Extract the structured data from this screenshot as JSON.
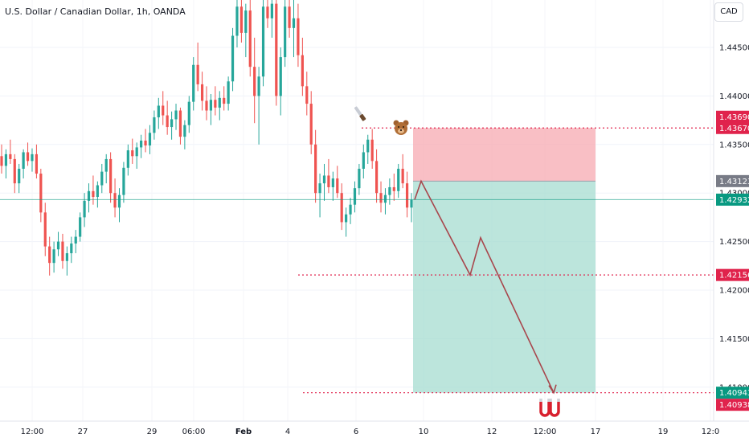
{
  "title": "U.S. Dollar / Canadian Dollar, 1h, OANDA",
  "currency_button": "CAD",
  "colors": {
    "up": "#26a69a",
    "down": "#ef5350",
    "stop_zone": "#f7a9b2",
    "target_zone": "#a6dcd0",
    "red_line": "#e0234c",
    "path": "#a8464c",
    "current_price": "#089981",
    "entry_tag": "#787b86"
  },
  "chart_data": {
    "type": "candlestick",
    "title": "U.S. Dollar / Canadian Dollar, 1h, OANDA",
    "y_axis": {
      "ticks": [
        "1.44500",
        "1.44000",
        "1.43500",
        "1.43000",
        "1.42500",
        "1.42000",
        "1.41500",
        "1.41000"
      ],
      "range": [
        1.4049,
        1.4507
      ]
    },
    "x_axis": {
      "ticks": [
        "12:00",
        "27",
        "29",
        "06:00",
        "Feb",
        "4",
        "6",
        "10",
        "12",
        "12:00",
        "17",
        "19",
        "12:0"
      ]
    },
    "price_labels": {
      "stop_upper": "1.43690",
      "stop": "1.43670",
      "entry": "1.43123",
      "current": "1.42932",
      "mid_target": "1.42156",
      "target": "1.40943",
      "target_lower": "1.40938"
    },
    "levels": {
      "stop": 1.4367,
      "entry": 1.43123,
      "current": 1.42932,
      "mid_target": 1.42156,
      "target": 1.40943
    },
    "projected_path": [
      1.42932,
      1.43123,
      1.42156,
      1.4254,
      1.40943
    ],
    "ohlc_approx": [
      [
        1.4338,
        1.435,
        1.432,
        1.4328
      ],
      [
        1.4328,
        1.4345,
        1.4315,
        1.434
      ],
      [
        1.434,
        1.4355,
        1.433,
        1.4335
      ],
      [
        1.4335,
        1.434,
        1.43,
        1.431
      ],
      [
        1.431,
        1.433,
        1.43,
        1.4325
      ],
      [
        1.4325,
        1.4345,
        1.4315,
        1.4342
      ],
      [
        1.4342,
        1.4352,
        1.4328,
        1.4333
      ],
      [
        1.4333,
        1.4346,
        1.4322,
        1.434
      ],
      [
        1.434,
        1.435,
        1.4315,
        1.432
      ],
      [
        1.432,
        1.4325,
        1.427,
        1.428
      ],
      [
        1.428,
        1.429,
        1.4235,
        1.4245
      ],
      [
        1.4245,
        1.4255,
        1.4215,
        1.4228
      ],
      [
        1.4228,
        1.425,
        1.4218,
        1.4242
      ],
      [
        1.4242,
        1.426,
        1.4235,
        1.425
      ],
      [
        1.425,
        1.4258,
        1.4222,
        1.423
      ],
      [
        1.423,
        1.4245,
        1.4215,
        1.4238
      ],
      [
        1.4238,
        1.4255,
        1.4228,
        1.4248
      ],
      [
        1.4248,
        1.4262,
        1.4238,
        1.4255
      ],
      [
        1.4255,
        1.428,
        1.425,
        1.4275
      ],
      [
        1.4275,
        1.43,
        1.4265,
        1.4292
      ],
      [
        1.4292,
        1.431,
        1.428,
        1.4302
      ],
      [
        1.4302,
        1.4318,
        1.4288,
        1.4296
      ],
      [
        1.4296,
        1.4312,
        1.4285,
        1.4308
      ],
      [
        1.4308,
        1.433,
        1.43,
        1.4322
      ],
      [
        1.4322,
        1.434,
        1.431,
        1.4335
      ],
      [
        1.4335,
        1.4342,
        1.429,
        1.43
      ],
      [
        1.43,
        1.4315,
        1.4275,
        1.4285
      ],
      [
        1.4285,
        1.4305,
        1.427,
        1.4298
      ],
      [
        1.4298,
        1.4332,
        1.429,
        1.4326
      ],
      [
        1.4326,
        1.435,
        1.4318,
        1.4344
      ],
      [
        1.4344,
        1.4356,
        1.433,
        1.4338
      ],
      [
        1.4338,
        1.4352,
        1.4325,
        1.4347
      ],
      [
        1.4347,
        1.436,
        1.4336,
        1.4354
      ],
      [
        1.4354,
        1.4366,
        1.4342,
        1.4349
      ],
      [
        1.4349,
        1.437,
        1.434,
        1.4362
      ],
      [
        1.4362,
        1.4385,
        1.4355,
        1.4378
      ],
      [
        1.4378,
        1.4398,
        1.4366,
        1.439
      ],
      [
        1.439,
        1.4405,
        1.437,
        1.438
      ],
      [
        1.438,
        1.4395,
        1.436,
        1.4368
      ],
      [
        1.4368,
        1.4384,
        1.4355,
        1.4376
      ],
      [
        1.4376,
        1.4392,
        1.4365,
        1.4385
      ],
      [
        1.4385,
        1.4388,
        1.435,
        1.4358
      ],
      [
        1.4358,
        1.4375,
        1.4345,
        1.437
      ],
      [
        1.437,
        1.44,
        1.4362,
        1.4394
      ],
      [
        1.4394,
        1.444,
        1.4385,
        1.4432
      ],
      [
        1.4432,
        1.4455,
        1.4405,
        1.4412
      ],
      [
        1.4412,
        1.4425,
        1.4385,
        1.4395
      ],
      [
        1.4395,
        1.441,
        1.4375,
        1.4385
      ],
      [
        1.4385,
        1.4402,
        1.437,
        1.4396
      ],
      [
        1.4396,
        1.441,
        1.438,
        1.4388
      ],
      [
        1.4388,
        1.4405,
        1.4375,
        1.4398
      ],
      [
        1.4398,
        1.441,
        1.4385,
        1.4392
      ],
      [
        1.4392,
        1.442,
        1.4385,
        1.4415
      ],
      [
        1.4415,
        1.447,
        1.4405,
        1.4462
      ],
      [
        1.4462,
        1.45,
        1.445,
        1.4492
      ],
      [
        1.4492,
        1.45,
        1.4455,
        1.4465
      ],
      [
        1.4465,
        1.4495,
        1.444,
        1.4488
      ],
      [
        1.4488,
        1.45,
        1.442,
        1.443
      ],
      [
        1.443,
        1.446,
        1.4372,
        1.44
      ],
      [
        1.44,
        1.443,
        1.435,
        1.442
      ],
      [
        1.442,
        1.45,
        1.441,
        1.4492
      ],
      [
        1.4492,
        1.45,
        1.447,
        1.448
      ],
      [
        1.448,
        1.45,
        1.446,
        1.4495
      ],
      [
        1.4495,
        1.45,
        1.439,
        1.44
      ],
      [
        1.44,
        1.445,
        1.438,
        1.444
      ],
      [
        1.444,
        1.45,
        1.443,
        1.4492
      ],
      [
        1.4492,
        1.45,
        1.446,
        1.447
      ],
      [
        1.447,
        1.45,
        1.444,
        1.448
      ],
      [
        1.448,
        1.4495,
        1.443,
        1.4442
      ],
      [
        1.4442,
        1.446,
        1.44,
        1.441
      ],
      [
        1.441,
        1.4425,
        1.438,
        1.4392
      ],
      [
        1.4392,
        1.4405,
        1.434,
        1.435
      ],
      [
        1.435,
        1.4365,
        1.429,
        1.43
      ],
      [
        1.43,
        1.432,
        1.4275,
        1.431
      ],
      [
        1.431,
        1.433,
        1.4292,
        1.4318
      ],
      [
        1.4318,
        1.4335,
        1.43,
        1.4306
      ],
      [
        1.4306,
        1.4322,
        1.4292,
        1.4315
      ],
      [
        1.4315,
        1.4328,
        1.4295,
        1.43
      ],
      [
        1.43,
        1.431,
        1.4262,
        1.427
      ],
      [
        1.427,
        1.4285,
        1.4255,
        1.4278
      ],
      [
        1.4278,
        1.4295,
        1.4268,
        1.4288
      ],
      [
        1.4288,
        1.4312,
        1.428,
        1.4305
      ],
      [
        1.4305,
        1.433,
        1.4298,
        1.4325
      ],
      [
        1.4325,
        1.435,
        1.4315,
        1.4342
      ],
      [
        1.4342,
        1.436,
        1.433,
        1.4355
      ],
      [
        1.4355,
        1.4366,
        1.4325,
        1.4333
      ],
      [
        1.4333,
        1.4345,
        1.429,
        1.43
      ],
      [
        1.43,
        1.4312,
        1.428,
        1.429
      ],
      [
        1.429,
        1.4305,
        1.4278,
        1.4298
      ],
      [
        1.4298,
        1.4315,
        1.4288,
        1.4306
      ],
      [
        1.4306,
        1.432,
        1.4292,
        1.4302
      ],
      [
        1.4302,
        1.433,
        1.4295,
        1.4325
      ],
      [
        1.4325,
        1.434,
        1.4305,
        1.431
      ],
      [
        1.431,
        1.4322,
        1.4275,
        1.4285
      ],
      [
        1.4285,
        1.43,
        1.427,
        1.4293
      ]
    ]
  },
  "watermark_emojis": [
    "knife",
    "bear-face",
    "magnet"
  ]
}
